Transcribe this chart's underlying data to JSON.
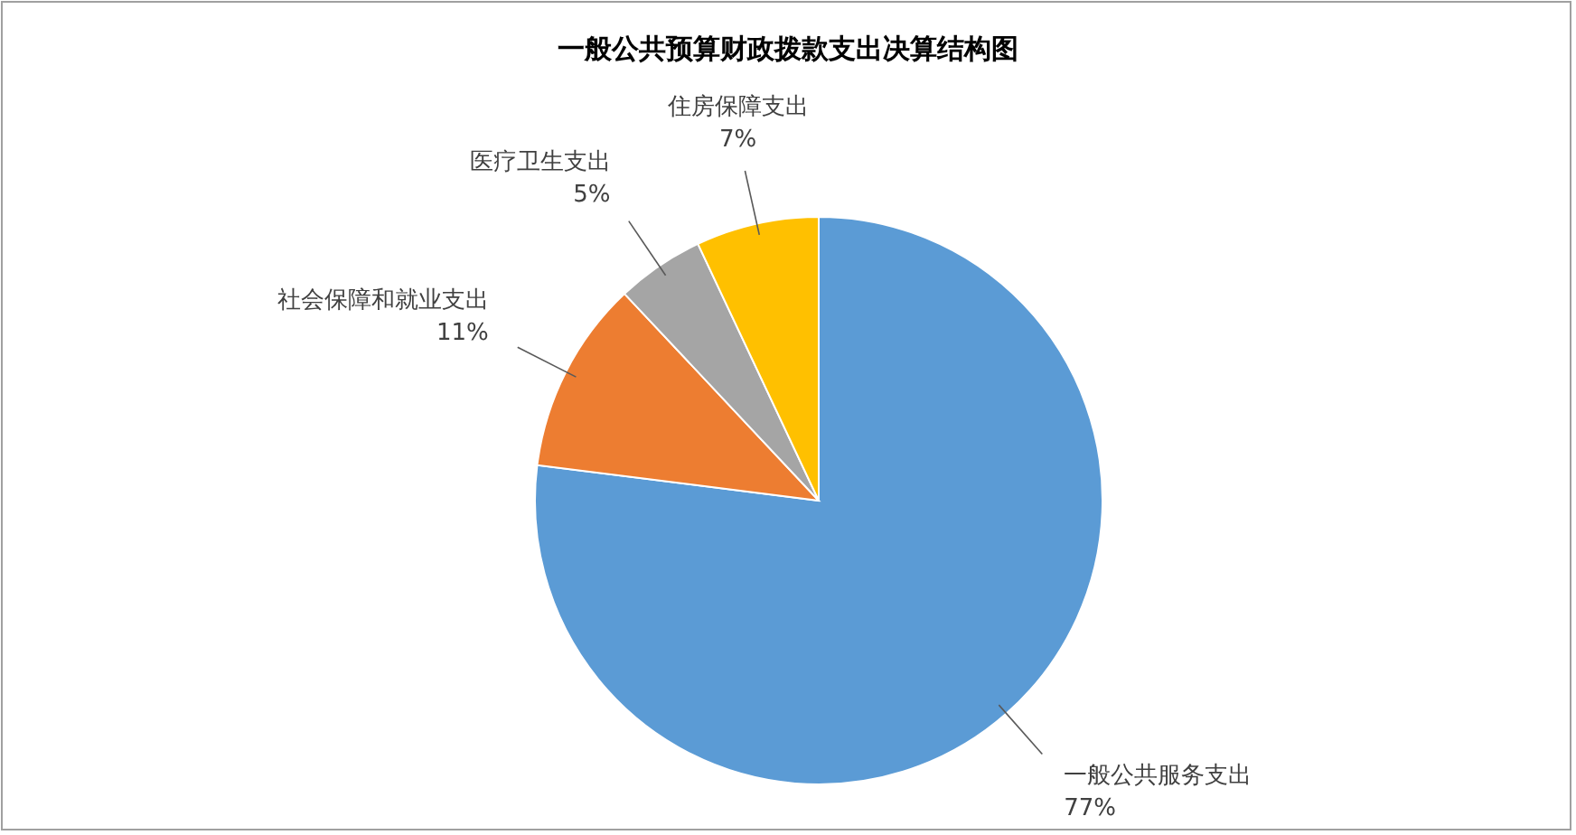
{
  "chart_data": {
    "type": "pie",
    "title": "一般公共预算财政拨款支出决算结构图",
    "categories": [
      "一般公共服务支出",
      "社会保障和就业支出",
      "医疗卫生支出",
      "住房保障支出"
    ],
    "values": [
      77,
      11,
      5,
      7
    ],
    "colors": [
      "#5b9bd5",
      "#ed7d31",
      "#a5a5a5",
      "#ffc000"
    ],
    "value_labels": [
      "77%",
      "11%",
      "5%",
      "7%"
    ],
    "legend": false
  }
}
